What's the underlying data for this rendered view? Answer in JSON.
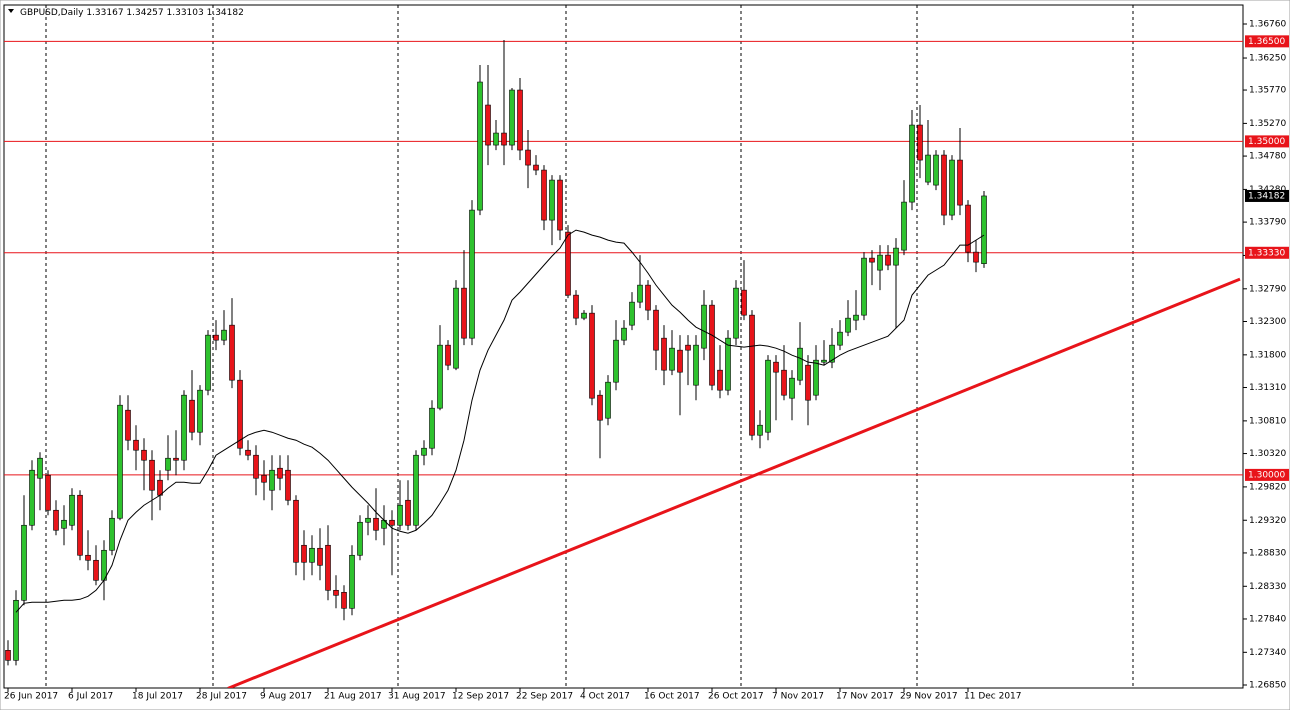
{
  "chart_data": {
    "type": "candlestick",
    "title": "GBPUSD,Daily",
    "quote": [
      "1.33167",
      "1.34257",
      "1.33103",
      "1.34182"
    ],
    "categories": [
      "26 Jun 2017",
      null,
      null,
      null,
      null,
      null,
      null,
      null,
      "6 Jul 2017",
      null,
      null,
      null,
      null,
      null,
      null,
      null,
      "18 Jul 2017",
      null,
      null,
      null,
      null,
      null,
      null,
      null,
      "28 Jul 2017",
      null,
      null,
      null,
      null,
      null,
      null,
      null,
      "9 Aug 2017",
      null,
      null,
      null,
      null,
      null,
      null,
      null,
      "21 Aug 2017",
      null,
      null,
      null,
      null,
      null,
      null,
      null,
      "31 Aug 2017",
      null,
      null,
      null,
      null,
      null,
      null,
      null,
      "12 Sep 2017",
      null,
      null,
      null,
      null,
      null,
      null,
      null,
      "22 Sep 2017",
      null,
      null,
      null,
      null,
      null,
      null,
      null,
      "4 Oct 2017",
      null,
      null,
      null,
      null,
      null,
      null,
      null,
      "16 Oct 2017",
      null,
      null,
      null,
      null,
      null,
      null,
      null,
      "26 Oct 2017",
      null,
      null,
      null,
      null,
      null,
      null,
      null,
      "7 Nov 2017",
      null,
      null,
      null,
      null,
      null,
      null,
      null,
      "17 Nov 2017",
      null,
      null,
      null,
      null,
      null,
      null,
      null,
      "29 Nov 2017",
      null,
      null,
      null,
      null,
      null,
      null,
      null,
      "11 Dec 2017",
      null,
      null
    ],
    "open": [
      1.2737,
      1.2722,
      1.2812,
      1.29245,
      1.2995,
      1.29995,
      1.2947,
      1.292,
      1.29245,
      1.29695,
      1.28795,
      1.2872,
      1.2842,
      1.2887,
      1.2935,
      1.3097,
      1.3052,
      1.3037,
      1.3022,
      1.2992,
      1.3007,
      1.3025,
      1.3022,
      1.3112,
      1.3064,
      1.3127,
      1.32095,
      1.3202,
      1.32245,
      1.3142,
      1.3037,
      1.30295,
      1.29995,
      1.2977,
      1.301,
      1.3007,
      1.2962,
      1.28945,
      1.2869,
      1.289,
      1.28945,
      1.2827,
      1.2824,
      1.28,
      1.28795,
      1.2929,
      1.2935,
      1.292,
      1.2932,
      1.29245,
      1.2962,
      1.29245,
      1.30295,
      1.304,
      1.31,
      1.31945,
      1.316,
      1.328,
      1.3205,
      1.3397,
      1.35545,
      1.34945,
      1.35125,
      1.34945,
      1.3577,
      1.3487,
      1.34645,
      1.3457,
      1.3382,
      1.3442,
      1.3364,
      1.32695,
      1.3235,
      1.32425,
      1.31195,
      1.3085,
      1.3139,
      1.3202,
      1.32245,
      1.3259,
      1.32845,
      1.3247,
      1.3205,
      1.3157,
      1.3187,
      1.31945,
      1.31345,
      1.319,
      1.32545,
      1.3157,
      1.3127,
      1.3205,
      1.3277,
      1.32395,
      1.30595,
      1.3064,
      1.3169,
      1.3157,
      1.3115,
      1.3142,
      1.31645,
      1.31195,
      1.3169,
      1.3169,
      1.31945,
      1.3214,
      1.3232,
      1.32395,
      1.3325,
      1.3307,
      1.33295,
      1.33145,
      1.3337,
      1.3409,
      1.35245,
      1.3439,
      1.34345,
      1.34795,
      1.33895,
      1.3472,
      1.34045,
      1.3334,
      1.33167
    ],
    "high": [
      1.2752,
      1.2827,
      1.29695,
      1.3022,
      1.3034,
      1.3007,
      1.2962,
      1.29545,
      1.298,
      1.2977,
      1.2917,
      1.28945,
      1.2902,
      1.2947,
      1.31195,
      1.31195,
      1.30745,
      1.3055,
      1.3037,
      1.3007,
      1.30595,
      1.3067,
      1.3127,
      1.3157,
      1.31345,
      1.3217,
      1.3232,
      1.3247,
      1.3265,
      1.3157,
      1.3052,
      1.30445,
      1.3022,
      1.30295,
      1.30295,
      1.30295,
      1.29695,
      1.2917,
      1.29095,
      1.292,
      1.29245,
      1.28495,
      1.28345,
      1.28945,
      1.29395,
      1.29545,
      1.298,
      1.29545,
      1.2947,
      1.2992,
      1.2992,
      1.3037,
      1.3052,
      1.3112,
      1.32245,
      1.3202,
      1.3292,
      1.3337,
      1.3412,
      1.36145,
      1.36145,
      1.3532,
      1.3652,
      1.358,
      1.3595,
      1.3517,
      1.34795,
      1.34645,
      1.34495,
      1.34495,
      1.33745,
      1.3277,
      1.3247,
      1.32545,
      1.3127,
      1.31495,
      1.3232,
      1.3232,
      1.3274,
      1.33295,
      1.3292,
      1.32545,
      1.32245,
      1.3217,
      1.32095,
      1.32095,
      1.32095,
      1.3277,
      1.3262,
      1.31945,
      1.3217,
      1.3292,
      1.3322,
      1.3247,
      1.3097,
      1.31795,
      1.31795,
      1.31945,
      1.3157,
      1.3229,
      1.31795,
      1.31945,
      1.3202,
      1.322,
      1.3232,
      1.3262,
      1.3277,
      1.3334,
      1.3337,
      1.33445,
      1.33445,
      1.3355,
      1.3442,
      1.3547,
      1.35545,
      1.3532,
      1.3487,
      1.3487,
      1.34795,
      1.352,
      1.3412,
      1.3352,
      1.34257
    ],
    "low": [
      1.27145,
      1.27145,
      1.28045,
      1.2917,
      1.2947,
      1.29395,
      1.29095,
      1.28945,
      1.2917,
      1.2872,
      1.2857,
      1.28345,
      1.2812,
      1.28795,
      1.2932,
      1.3037,
      1.3007,
      1.2977,
      1.2932,
      1.2947,
      1.2992,
      1.29995,
      1.3007,
      1.3052,
      1.30445,
      1.31195,
      1.3187,
      1.31945,
      1.313,
      1.30295,
      1.3022,
      1.29695,
      1.2962,
      1.2947,
      1.2977,
      1.29545,
      1.28495,
      1.2842,
      1.28495,
      1.2842,
      1.2812,
      1.28,
      1.2782,
      1.27895,
      1.2872,
      1.29095,
      1.2902,
      1.28945,
      1.28495,
      1.2917,
      1.2917,
      1.2917,
      1.30145,
      1.30295,
      1.3097,
      1.3157,
      1.3157,
      1.31945,
      1.31945,
      1.33895,
      1.34645,
      1.3487,
      1.34645,
      1.3487,
      1.3472,
      1.343,
      1.34495,
      1.3367,
      1.33445,
      1.3352,
      1.3265,
      1.32245,
      1.3232,
      1.31045,
      1.3025,
      1.30745,
      1.3127,
      1.31945,
      1.3217,
      1.325,
      1.3232,
      1.3157,
      1.31345,
      1.31495,
      1.30895,
      1.31345,
      1.3112,
      1.3172,
      1.3127,
      1.3115,
      1.31195,
      1.31945,
      1.3232,
      1.3052,
      1.304,
      1.3052,
      1.3082,
      1.3112,
      1.3082,
      1.31345,
      1.30745,
      1.3112,
      1.31645,
      1.316,
      1.3187,
      1.3208,
      1.3217,
      1.3232,
      1.32845,
      1.3277,
      1.3307,
      1.322,
      1.33295,
      1.3397,
      1.3445,
      1.34345,
      1.3427,
      1.33745,
      1.3382,
      1.33895,
      1.3319,
      1.3304,
      1.33103
    ],
    "close": [
      1.2722,
      1.2812,
      1.29245,
      1.3007,
      1.3025,
      1.2947,
      1.2917,
      1.2932,
      1.29695,
      1.28795,
      1.2872,
      1.2842,
      1.2887,
      1.2935,
      1.31045,
      1.3052,
      1.3037,
      1.3022,
      1.2977,
      1.29695,
      1.3025,
      1.3022,
      1.31195,
      1.3064,
      1.3127,
      1.32095,
      1.3202,
      1.3217,
      1.3142,
      1.304,
      1.30295,
      1.2995,
      1.2989,
      1.3007,
      1.2995,
      1.2962,
      1.2869,
      1.2869,
      1.289,
      1.28645,
      1.2827,
      1.28195,
      1.28,
      1.28795,
      1.2929,
      1.2935,
      1.2917,
      1.2932,
      1.29245,
      1.29545,
      1.29245,
      1.30295,
      1.304,
      1.31,
      1.31945,
      1.31645,
      1.328,
      1.3205,
      1.3397,
      1.3589,
      1.34945,
      1.35125,
      1.34945,
      1.3577,
      1.3487,
      1.34645,
      1.3457,
      1.3382,
      1.3442,
      1.3367,
      1.32695,
      1.3235,
      1.32425,
      1.3115,
      1.3082,
      1.3139,
      1.3202,
      1.322,
      1.3259,
      1.32845,
      1.3247,
      1.3187,
      1.3157,
      1.319,
      1.3154,
      1.3187,
      1.31945,
      1.32545,
      1.31345,
      1.3127,
      1.3205,
      1.328,
      1.32395,
      1.30595,
      1.30745,
      1.3172,
      1.3154,
      1.31195,
      1.3145,
      1.319,
      1.3112,
      1.3172,
      1.3172,
      1.31945,
      1.3214,
      1.3235,
      1.32395,
      1.3325,
      1.3319,
      1.33295,
      1.33145,
      1.334,
      1.3409,
      1.35245,
      1.3472,
      1.34795,
      1.34795,
      1.33895,
      1.3472,
      1.34045,
      1.3334,
      1.3319,
      1.34182
    ],
    "up_color": "#2ec22e",
    "down_color": "#e8141a",
    "ma": {
      "color": "#000000",
      "values": [
        null,
        1.2794,
        1.28075,
        1.2809,
        1.2809,
        1.2809,
        1.28105,
        1.2812,
        1.2812,
        1.28135,
        1.2818,
        1.2827,
        1.2842,
        1.28645,
        1.2902,
        1.2932,
        1.2944,
        1.29545,
        1.2962,
        1.29695,
        1.298,
        1.2989,
        1.2989,
        1.29875,
        1.29875,
        1.3007,
        1.30295,
        1.3037,
        1.30445,
        1.3052,
        1.30595,
        1.3064,
        1.3067,
        1.3064,
        1.30595,
        1.3055,
        1.3052,
        1.3046,
        1.30415,
        1.30325,
        1.3022,
        1.30085,
        1.2995,
        1.29815,
        1.29695,
        1.29575,
        1.2944,
        1.2932,
        1.292,
        1.29155,
        1.29125,
        1.2917,
        1.29275,
        1.29395,
        1.29575,
        1.2977,
        1.3007,
        1.3052,
        1.3112,
        1.3157,
        1.3187,
        1.32095,
        1.3232,
        1.3262,
        1.3274,
        1.32875,
        1.3301,
        1.33145,
        1.3328,
        1.334,
        1.33595,
        1.3367,
        1.3364,
        1.33595,
        1.33565,
        1.3352,
        1.3349,
        1.33475,
        1.3334,
        1.3319,
        1.33025,
        1.32845,
        1.32695,
        1.32545,
        1.3244,
        1.3232,
        1.32215,
        1.32155,
        1.32095,
        1.3202,
        1.31945,
        1.3193,
        1.31915,
        1.3193,
        1.31945,
        1.3193,
        1.319,
        1.31855,
        1.31795,
        1.3175,
        1.3169,
        1.31675,
        1.31645,
        1.3172,
        1.31795,
        1.31855,
        1.319,
        1.31945,
        1.3199,
        1.32035,
        1.3208,
        1.322,
        1.3232,
        1.32695,
        1.32845,
        1.32995,
        1.3307,
        1.33145,
        1.33295,
        1.33445,
        1.33445,
        1.3352,
        1.33595
      ]
    },
    "trend_line": {
      "color": "#e8141a",
      "points": [
        [
          27.5,
          1.268
        ],
        [
          154,
          1.32935
        ]
      ]
    },
    "levels": [
      {
        "value": 1.365,
        "label": "1.36500"
      },
      {
        "value": 1.35,
        "label": "1.35000"
      },
      {
        "value": 1.3333,
        "label": "1.33330"
      },
      {
        "value": 1.3,
        "label": "1.30000"
      }
    ],
    "level_color": "#e8141a",
    "last_price_label": "1.34182",
    "ylim": [
      1.26805,
      1.37045
    ],
    "yticks": [
      {
        "value": 1.3676,
        "label": "1.36760"
      },
      {
        "value": 1.3625,
        "label": "1.36250"
      },
      {
        "value": 1.3577,
        "label": "1.35770"
      },
      {
        "value": 1.3527,
        "label": "1.35270"
      },
      {
        "value": 1.3478,
        "label": "1.34780"
      },
      {
        "value": 1.3428,
        "label": "1.34280"
      },
      {
        "value": 1.3379,
        "label": "1.33790"
      },
      {
        "value": 1.3329,
        "label": "1.33290"
      },
      {
        "value": 1.3279,
        "label": "1.32790"
      },
      {
        "value": 1.323,
        "label": "1.32300"
      },
      {
        "value": 1.318,
        "label": "1.31800"
      },
      {
        "value": 1.3131,
        "label": "1.31310"
      },
      {
        "value": 1.3081,
        "label": "1.30810"
      },
      {
        "value": 1.3032,
        "label": "1.30320"
      },
      {
        "value": 1.2982,
        "label": "1.29820"
      },
      {
        "value": 1.2932,
        "label": "1.29320"
      },
      {
        "value": 1.2883,
        "label": "1.28830"
      },
      {
        "value": 1.2833,
        "label": "1.28330"
      },
      {
        "value": 1.2784,
        "label": "1.27840"
      },
      {
        "value": 1.2734,
        "label": "1.27340"
      },
      {
        "value": 1.2685,
        "label": "1.26850"
      }
    ]
  }
}
